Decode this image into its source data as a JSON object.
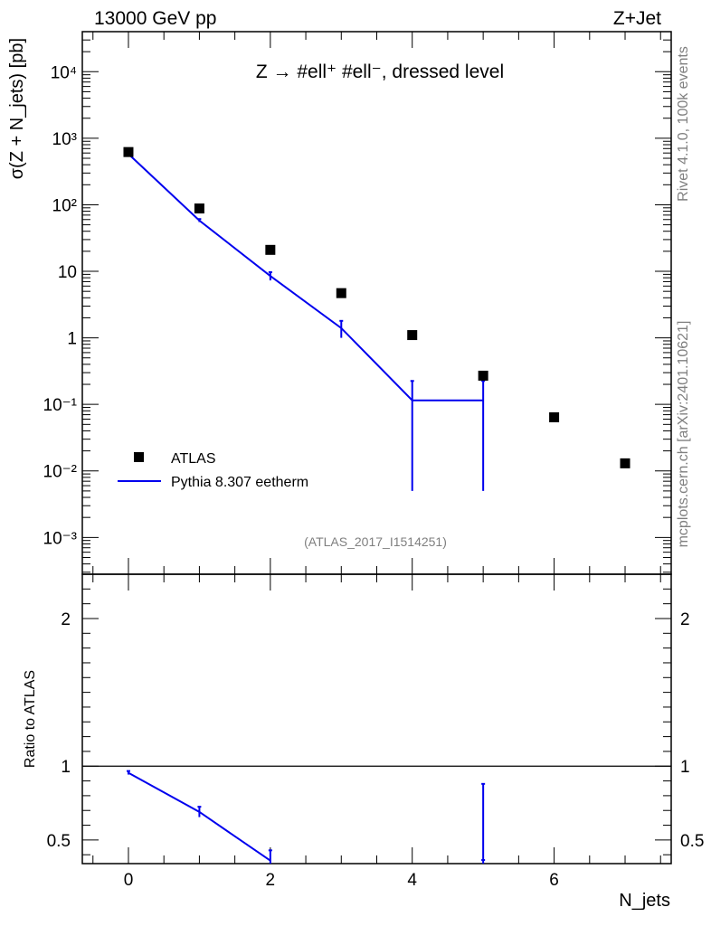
{
  "header": {
    "left": "13000 GeV pp",
    "right": "Z+Jet"
  },
  "side_labels": {
    "rivet": "Rivet 4.1.0,  100k events",
    "mcplots": "mcplots.cern.ch [arXiv:2401.10621]"
  },
  "watermark": "(ATLAS_2017_I1514251)",
  "colors": {
    "data": "#000000",
    "mc": "#0000ee",
    "grey_text": "#7f7f7f"
  },
  "chart_data": [
    {
      "type": "scatter",
      "panel": "main",
      "title": "Z → #ell⁺ #ell⁻, dressed level",
      "xlabel": "N_jets",
      "ylabel": "σ(Z + N_jets) [pb]",
      "yscale": "log",
      "xlim": [
        -0.65,
        7.65
      ],
      "ylim": [
        0.00028,
        40000
      ],
      "ytick_labels": [
        "10⁻³",
        "10⁻²",
        "10⁻¹",
        "1",
        "10",
        "10²",
        "10³",
        "10⁴"
      ],
      "legend_position": "bottom-left",
      "series": [
        {
          "name": "ATLAS",
          "kind": "points",
          "x": [
            0,
            1,
            2,
            3,
            4,
            5,
            6,
            7
          ],
          "y": [
            620,
            88,
            21,
            4.7,
            1.1,
            0.27,
            0.064,
            0.013
          ]
        },
        {
          "name": "Pythia 8.307 eetherm",
          "kind": "line",
          "x": [
            0,
            1,
            2,
            3,
            4,
            5
          ],
          "y": [
            580,
            58,
            8.5,
            1.4,
            0.115,
            0.115
          ],
          "err": [
            15,
            3,
            1.2,
            0.4,
            0.11,
            0.11
          ]
        }
      ]
    },
    {
      "type": "line",
      "panel": "ratio",
      "xlabel": "N_jets",
      "ylabel": "Ratio to ATLAS",
      "xlim": [
        -0.65,
        7.65
      ],
      "ylim": [
        0.34,
        2.3
      ],
      "xtick_labels": [
        "0",
        "2",
        "4",
        "6"
      ],
      "ytick_labels": [
        "0.5",
        "1",
        "2"
      ],
      "series": [
        {
          "name": "Pythia 8.307 eetherm",
          "x": [
            0,
            1,
            2,
            5
          ],
          "y": [
            0.955,
            0.69,
            0.36,
            0.36
          ],
          "err": [
            0.012,
            0.035,
            0.07,
            0.52
          ]
        }
      ]
    }
  ]
}
